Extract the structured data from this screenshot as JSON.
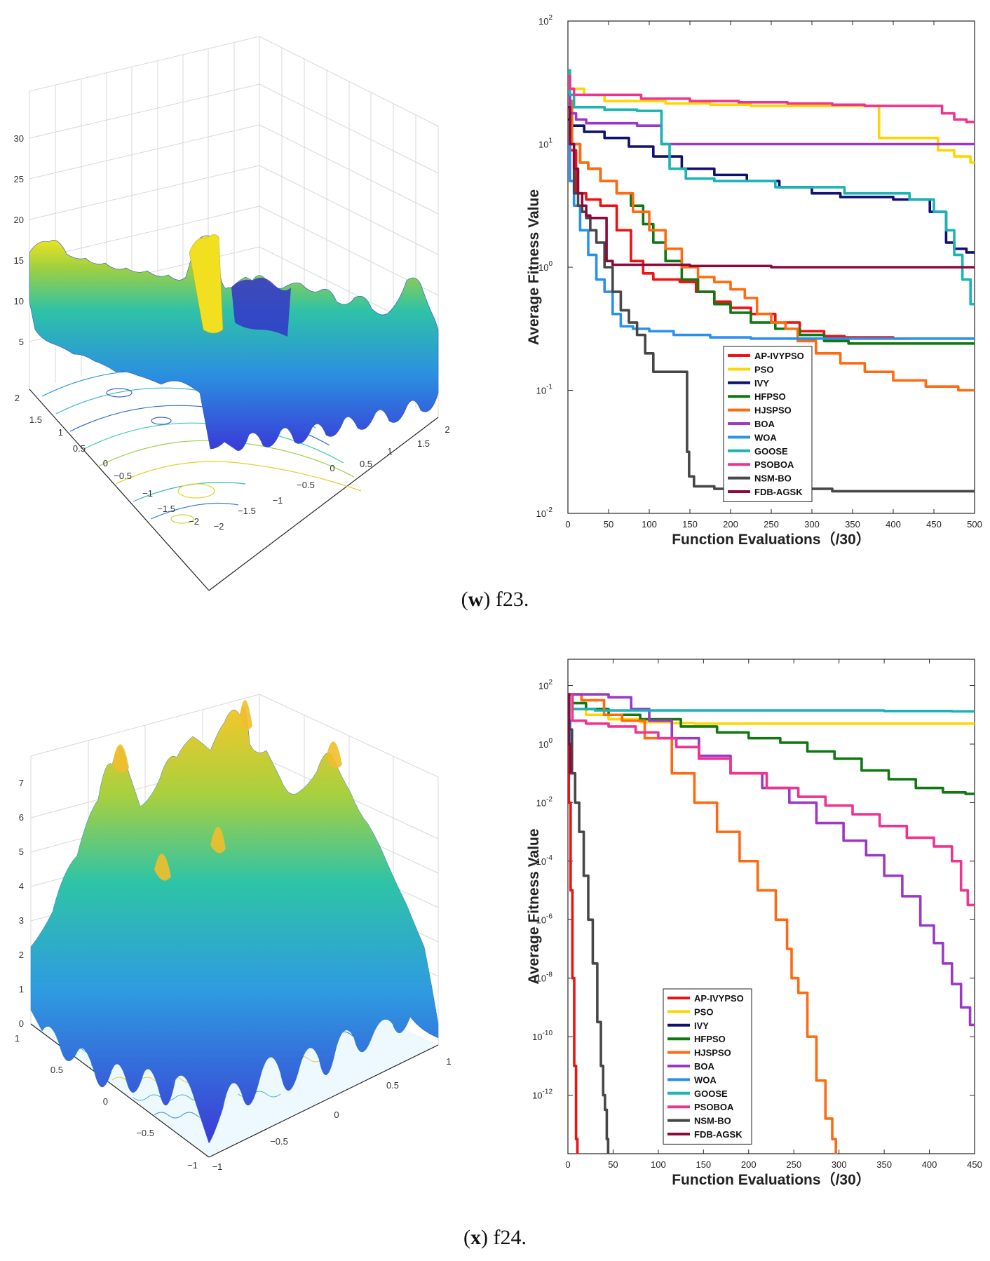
{
  "colors": {
    "AP-IVYPSO": "#ee1111",
    "PSO": "#ffd500",
    "IVY": "#101070",
    "HFPSO": "#117711",
    "HJSPSO": "#ff6a10",
    "BOA": "#9a38c8",
    "WOA": "#2a8fef",
    "GOOSE": "#19b4b4",
    "PSOBOA": "#f0338f",
    "NSM-BO": "#474747",
    "FDB-AGSK": "#8a0a3c"
  },
  "captions": [
    {
      "label": "w",
      "text": " f23."
    },
    {
      "label": "x",
      "text": " f24."
    }
  ],
  "surfaces": [
    {
      "name": "f23-surface",
      "z_ticks": [
        "5",
        "10",
        "15",
        "20",
        "25",
        "30"
      ],
      "left_ticks": [
        "2",
        "1.5",
        "1",
        "0.5",
        "0",
        "−0.5",
        "−1",
        "−1.5",
        "−2"
      ],
      "bottom_ticks": [
        "−2",
        "−1.5",
        "−1",
        "−0.5",
        "0",
        "0.5",
        "1",
        "1.5",
        "2"
      ]
    },
    {
      "name": "f24-surface",
      "z_ticks": [
        "0",
        "1",
        "2",
        "3",
        "4",
        "5",
        "6",
        "7"
      ],
      "left_ticks": [
        "1",
        "0.5",
        "0",
        "−0.5",
        "−1"
      ],
      "bottom_ticks": [
        "−1",
        "−0.5",
        "0",
        "0.5",
        "1"
      ]
    }
  ],
  "chart_data": [
    {
      "type": "line",
      "title": "",
      "xlabel": "Function Evaluations（/30）",
      "ylabel": "Average Fitness Value",
      "yscale": "log",
      "xlim": [
        0,
        500
      ],
      "ylim_exp": [
        -2,
        2
      ],
      "x_ticks": [
        0,
        50,
        100,
        150,
        200,
        250,
        300,
        350,
        400,
        450,
        500
      ],
      "y_tick_labels": [
        {
          "base": "10",
          "exp": "-2"
        },
        {
          "base": "10",
          "exp": "-1"
        },
        {
          "base": "10",
          "exp": "0"
        },
        {
          "base": "10",
          "exp": "1"
        },
        {
          "base": "10",
          "exp": "2"
        }
      ],
      "legend": "bottom-center",
      "series": [
        {
          "name": "AP-IVYPSO",
          "x": [
            0,
            5,
            15,
            30,
            50,
            70,
            85,
            100,
            110,
            130,
            145,
            170,
            190,
            210,
            240,
            270,
            300,
            330,
            350,
            380,
            420
          ],
          "log10y": [
            1.35,
            0.95,
            0.6,
            0.55,
            0.5,
            0.3,
            0.05,
            -0.05,
            -0.1,
            -0.1,
            -0.12,
            -0.2,
            -0.28,
            -0.33,
            -0.38,
            -0.45,
            -0.52,
            -0.56,
            -0.57,
            -0.57,
            -0.58
          ]
        },
        {
          "name": "PSO",
          "x": [
            0,
            5,
            10,
            30,
            60,
            90,
            150,
            200,
            250,
            300,
            350,
            380,
            385,
            450,
            460,
            490,
            500
          ],
          "log10y": [
            1.6,
            1.45,
            1.45,
            1.4,
            1.35,
            1.35,
            1.33,
            1.32,
            1.31,
            1.31,
            1.31,
            1.31,
            1.05,
            1.05,
            0.95,
            0.9,
            0.85
          ]
        },
        {
          "name": "IVY",
          "x": [
            0,
            10,
            30,
            60,
            90,
            120,
            160,
            200,
            240,
            280,
            320,
            350,
            380,
            420,
            430,
            460,
            470,
            480,
            500
          ],
          "log10y": [
            1.2,
            1.15,
            1.1,
            1.05,
            0.98,
            0.9,
            0.8,
            0.75,
            0.7,
            0.65,
            0.6,
            0.57,
            0.57,
            0.55,
            0.55,
            0.45,
            0.2,
            0.15,
            0.12
          ]
        },
        {
          "name": "HFPSO",
          "x": [
            0,
            10,
            20,
            30,
            50,
            70,
            85,
            100,
            110,
            130,
            150,
            170,
            190,
            210,
            240,
            270,
            300,
            330,
            360,
            400,
            450,
            500
          ],
          "log10y": [
            1.35,
            1.0,
            0.85,
            0.8,
            0.7,
            0.6,
            0.5,
            0.35,
            0.2,
            0.05,
            -0.1,
            -0.2,
            -0.3,
            -0.37,
            -0.45,
            -0.5,
            -0.55,
            -0.6,
            -0.62,
            -0.62,
            -0.62,
            -0.62
          ]
        },
        {
          "name": "HJSPSO",
          "x": [
            0,
            10,
            20,
            30,
            50,
            70,
            90,
            110,
            130,
            150,
            170,
            190,
            210,
            225,
            240,
            260,
            275,
            290,
            320,
            350,
            380,
            420,
            460,
            500
          ],
          "log10y": [
            1.35,
            1.0,
            0.85,
            0.8,
            0.7,
            0.6,
            0.45,
            0.3,
            0.15,
            0.0,
            -0.08,
            -0.12,
            -0.18,
            -0.25,
            -0.38,
            -0.45,
            -0.5,
            -0.6,
            -0.7,
            -0.78,
            -0.85,
            -0.92,
            -0.97,
            -1.0
          ]
        },
        {
          "name": "BOA",
          "x": [
            0,
            5,
            15,
            30,
            60,
            110,
            120,
            200,
            300,
            400,
            500
          ],
          "log10y": [
            1.4,
            1.25,
            1.2,
            1.17,
            1.17,
            1.15,
            1.0,
            1.0,
            1.0,
            1.0,
            1.0
          ]
        },
        {
          "name": "WOA",
          "x": [
            0,
            5,
            10,
            20,
            30,
            40,
            50,
            60,
            70,
            90,
            110,
            150,
            200,
            250,
            300,
            400,
            500
          ],
          "log10y": [
            1.0,
            0.7,
            0.5,
            0.3,
            0.1,
            -0.1,
            -0.2,
            -0.38,
            -0.48,
            -0.5,
            -0.52,
            -0.55,
            -0.57,
            -0.58,
            -0.58,
            -0.58,
            -0.58
          ]
        },
        {
          "name": "GOOSE",
          "x": [
            0,
            5,
            10,
            30,
            60,
            110,
            120,
            130,
            140,
            150,
            160,
            200,
            240,
            270,
            320,
            360,
            400,
            440,
            460,
            470,
            480,
            490,
            500
          ],
          "log10y": [
            1.6,
            1.4,
            1.3,
            1.3,
            1.28,
            1.27,
            1.0,
            0.8,
            0.8,
            0.72,
            0.72,
            0.7,
            0.7,
            0.65,
            0.65,
            0.6,
            0.6,
            0.55,
            0.45,
            0.3,
            0.1,
            -0.1,
            -0.3
          ]
        },
        {
          "name": "PSOBOA",
          "x": [
            0,
            5,
            10,
            60,
            120,
            180,
            240,
            300,
            350,
            380,
            420,
            450,
            470,
            480,
            500
          ],
          "log10y": [
            1.55,
            1.45,
            1.4,
            1.4,
            1.37,
            1.35,
            1.34,
            1.33,
            1.32,
            1.31,
            1.31,
            1.31,
            1.25,
            1.2,
            1.18
          ]
        },
        {
          "name": "NSM-BO",
          "x": [
            0,
            5,
            10,
            15,
            20,
            25,
            30,
            40,
            50,
            60,
            70,
            80,
            90,
            100,
            110,
            145,
            148,
            150,
            160,
            200,
            250,
            300,
            350,
            400,
            450,
            500
          ],
          "log10y": [
            1.3,
            1.0,
            0.6,
            0.5,
            0.45,
            0.4,
            0.3,
            0.2,
            0.0,
            -0.2,
            -0.35,
            -0.45,
            -0.55,
            -0.7,
            -0.85,
            -0.85,
            -1.5,
            -1.7,
            -1.78,
            -1.8,
            -1.8,
            -1.8,
            -1.82,
            -1.82,
            -1.82,
            -1.82
          ]
        },
        {
          "name": "FDB-AGSK",
          "x": [
            0,
            5,
            10,
            15,
            20,
            25,
            30,
            35,
            45,
            50,
            60,
            100,
            200,
            300,
            400,
            500
          ],
          "log10y": [
            1.3,
            1.0,
            0.8,
            0.6,
            0.5,
            0.42,
            0.4,
            0.4,
            0.4,
            0.05,
            0.02,
            0.02,
            0.01,
            0.0,
            0.0,
            0.0
          ]
        }
      ]
    },
    {
      "type": "line",
      "title": "",
      "xlabel": "Function Evaluations（/30）",
      "ylabel": "Average Fitness Value",
      "yscale": "log",
      "xlim": [
        0,
        450
      ],
      "ylim_exp": [
        -14,
        2.9
      ],
      "x_ticks": [
        0,
        50,
        100,
        150,
        200,
        250,
        300,
        350,
        400,
        450
      ],
      "y_tick_labels": [
        {
          "base": "10",
          "exp": "-12"
        },
        {
          "base": "10",
          "exp": "-10"
        },
        {
          "base": "10",
          "exp": "-8"
        },
        {
          "base": "10",
          "exp": "-6"
        },
        {
          "base": "10",
          "exp": "-4"
        },
        {
          "base": "10",
          "exp": "-2"
        },
        {
          "base": "10",
          "exp": "0"
        },
        {
          "base": "10",
          "exp": "2"
        }
      ],
      "legend": "bottom-center",
      "series": [
        {
          "name": "AP-IVYPSO",
          "x": [
            0,
            2,
            4,
            6,
            8,
            10,
            11
          ],
          "log10y": [
            1.7,
            -2,
            -5,
            -8,
            -11,
            -13.5,
            -14
          ]
        },
        {
          "name": "PSO",
          "x": [
            0,
            10,
            30,
            60,
            100,
            130,
            150,
            200,
            300,
            400,
            450
          ],
          "log10y": [
            1.7,
            1.2,
            1.0,
            0.85,
            0.75,
            0.72,
            0.7,
            0.7,
            0.7,
            0.7,
            0.7
          ]
        },
        {
          "name": "IVY",
          "x": [
            0,
            2,
            3
          ],
          "log10y": [
            1.7,
            0.5,
            -0.5
          ]
        },
        {
          "name": "HFPSO",
          "x": [
            0,
            10,
            30,
            60,
            100,
            150,
            180,
            220,
            250,
            280,
            310,
            340,
            370,
            400,
            430,
            450
          ],
          "log10y": [
            1.7,
            1.4,
            1.2,
            1.0,
            0.85,
            0.6,
            0.4,
            0.2,
            0.05,
            -0.25,
            -0.5,
            -0.9,
            -1.2,
            -1.5,
            -1.65,
            -1.7
          ]
        },
        {
          "name": "HJSPSO",
          "x": [
            0,
            30,
            50,
            70,
            100,
            130,
            150,
            180,
            200,
            220,
            240,
            245,
            250,
            260,
            270,
            280,
            290,
            295,
            298
          ],
          "log10y": [
            1.7,
            1.5,
            1.0,
            0.8,
            0.2,
            -1.0,
            -2.0,
            -3.0,
            -4.0,
            -5.0,
            -6.0,
            -7.0,
            -8.0,
            -8.5,
            -10.0,
            -11.5,
            -12.8,
            -13.5,
            -14
          ]
        },
        {
          "name": "BOA",
          "x": [
            0,
            30,
            60,
            80,
            100,
            130,
            160,
            200,
            230,
            260,
            290,
            320,
            340,
            360,
            380,
            400,
            410,
            420,
            430,
            440,
            450
          ],
          "log10y": [
            1.7,
            1.7,
            1.6,
            1.2,
            0.8,
            0.2,
            -0.4,
            -1.0,
            -1.5,
            -2.0,
            -2.7,
            -3.3,
            -3.8,
            -4.5,
            -5.2,
            -6.2,
            -6.8,
            -7.5,
            -8.2,
            -9.0,
            -9.6
          ]
        },
        {
          "name": "WOA",
          "x": [
            0,
            2,
            3
          ],
          "log10y": [
            1.7,
            0.8,
            0.0
          ]
        },
        {
          "name": "GOOSE",
          "x": [
            0,
            10,
            50,
            100,
            200,
            300,
            400,
            450
          ],
          "log10y": [
            1.7,
            1.2,
            1.15,
            1.15,
            1.15,
            1.15,
            1.13,
            1.12
          ]
        },
        {
          "name": "PSOBOA",
          "x": [
            0,
            10,
            30,
            60,
            90,
            110,
            130,
            160,
            200,
            240,
            270,
            300,
            330,
            360,
            390,
            420,
            430,
            440,
            445,
            450
          ],
          "log10y": [
            1.7,
            0.8,
            0.7,
            0.6,
            0.4,
            0.2,
            -0.1,
            -0.5,
            -1.0,
            -1.5,
            -1.8,
            -2.1,
            -2.4,
            -2.8,
            -3.2,
            -3.5,
            -4.0,
            -5.0,
            -5.5,
            -5.5
          ]
        },
        {
          "name": "NSM-BO",
          "x": [
            0,
            3,
            6,
            10,
            15,
            20,
            25,
            30,
            35,
            38,
            40,
            42,
            44,
            45
          ],
          "log10y": [
            1.7,
            0.5,
            -1.0,
            -2.0,
            -3.0,
            -4.5,
            -6.0,
            -7.5,
            -9.5,
            -11.0,
            -12.0,
            -12.5,
            -13.5,
            -14
          ]
        },
        {
          "name": "FDB-AGSK",
          "x": [
            0,
            2,
            3
          ],
          "log10y": [
            1.7,
            0.0,
            -1.0
          ]
        }
      ]
    }
  ]
}
